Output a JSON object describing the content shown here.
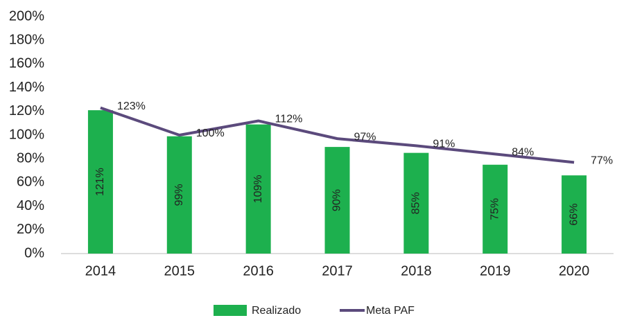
{
  "chart_data": {
    "type": "bar_line",
    "categories": [
      "2014",
      "2015",
      "2016",
      "2017",
      "2018",
      "2019",
      "2020"
    ],
    "series": [
      {
        "name": "Realizado",
        "type": "bar",
        "color": "#1db04e",
        "values": [
          121,
          99,
          109,
          90,
          85,
          75,
          66
        ],
        "value_labels": [
          "121%",
          "99%",
          "109%",
          "90%",
          "85%",
          "75%",
          "66%"
        ]
      },
      {
        "name": "Meta PAF",
        "type": "line",
        "color": "#5b4a7c",
        "values": [
          123,
          100,
          112,
          97,
          91,
          84,
          77
        ],
        "value_labels": [
          "123%",
          "100%",
          "112%",
          "97%",
          "91%",
          "84%",
          "77%"
        ]
      }
    ],
    "ylim": [
      0,
      200
    ],
    "yticks": [
      {
        "value": 0,
        "label": "0%"
      },
      {
        "value": 20,
        "label": "20%"
      },
      {
        "value": 40,
        "label": "40%"
      },
      {
        "value": 60,
        "label": "60%"
      },
      {
        "value": 80,
        "label": "80%"
      },
      {
        "value": 100,
        "label": "100%"
      },
      {
        "value": 120,
        "label": "120%"
      },
      {
        "value": 140,
        "label": "140%"
      },
      {
        "value": 160,
        "label": "160%"
      },
      {
        "value": 180,
        "label": "180%"
      },
      {
        "value": 200,
        "label": "200%"
      }
    ],
    "grid": false,
    "legend": "bottom"
  }
}
